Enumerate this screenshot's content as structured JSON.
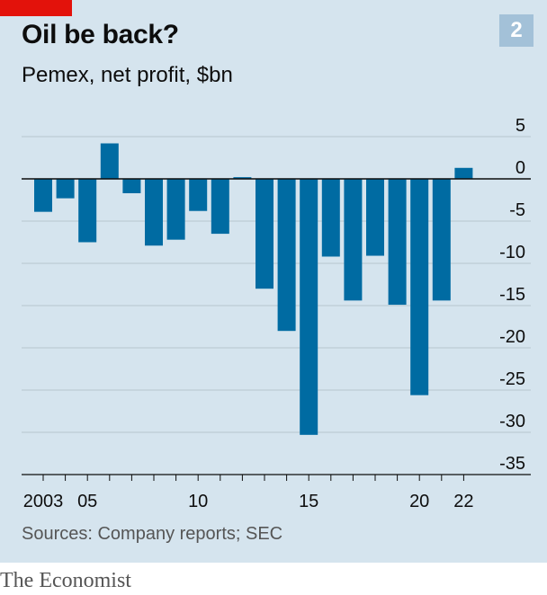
{
  "title": "Oil be back?",
  "subtitle": "Pemex, net profit, $bn",
  "chart_number": "2",
  "source": "Sources: Company reports; SEC",
  "brand": "The Economist",
  "colors": {
    "bar": "#006ba2",
    "background": "#d5e4ee",
    "grid": "#b7c6cf",
    "badge": "#a3c1d8",
    "tag": "#e3120b"
  },
  "chart_data": {
    "type": "bar",
    "title": "Oil be back?",
    "subtitle": "Pemex, net profit, $bn",
    "categories": [
      "2003",
      "2004",
      "2005",
      "2006",
      "2007",
      "2008",
      "2009",
      "2010",
      "2011",
      "2012",
      "2013",
      "2014",
      "2015",
      "2016",
      "2017",
      "2018",
      "2019",
      "2020",
      "2021",
      "2022"
    ],
    "values": [
      -3.9,
      -2.3,
      -7.5,
      4.2,
      -1.7,
      -7.9,
      -7.2,
      -3.8,
      -6.5,
      0.2,
      -13.0,
      -18.0,
      -30.3,
      -9.2,
      -14.4,
      -9.1,
      -14.9,
      -25.6,
      -14.4,
      1.3
    ],
    "x_tick_labels": [
      {
        "category": "2003",
        "label": "2003"
      },
      {
        "category": "2005",
        "label": "05"
      },
      {
        "category": "2010",
        "label": "10"
      },
      {
        "category": "2015",
        "label": "15"
      },
      {
        "category": "2020",
        "label": "20"
      },
      {
        "category": "2022",
        "label": "22"
      }
    ],
    "y_ticks": [
      5,
      0,
      -5,
      -10,
      -15,
      -20,
      -25,
      -30,
      -35
    ],
    "ylim": [
      -35,
      5
    ],
    "grid": true,
    "y_axis_position": "right",
    "xlabel": "",
    "ylabel": ""
  }
}
